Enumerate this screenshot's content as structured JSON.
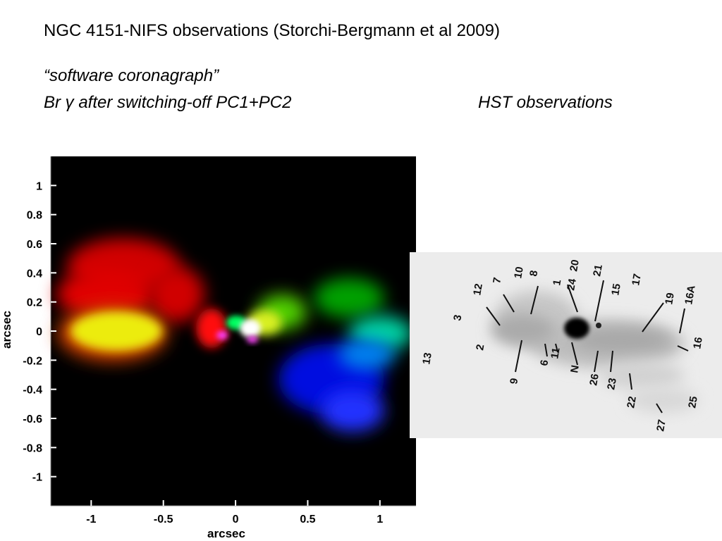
{
  "header": {
    "title": "NGC 4151-NIFS observations (Storchi-Bergmann et al 2009)",
    "subtitle_quote": "“software coronagraph”",
    "subtitle_left": "Br γ after switching-off PC1+PC2",
    "subtitle_right": "HST observations"
  },
  "nifs_plot": {
    "xlabel": "arcsec",
    "ylabel": "arcsec",
    "x_ticks": [
      "-1",
      "-0.5",
      "0",
      "0.5",
      "1"
    ],
    "y_ticks": [
      "1",
      "0.8",
      "0.6",
      "0.4",
      "0.2",
      "0",
      "-0.2",
      "-0.4",
      "-0.6",
      "-0.8",
      "-1"
    ]
  },
  "hst_labels": [
    "13",
    "3",
    "12",
    "2",
    "7",
    "10",
    "8",
    "9",
    "1",
    "6",
    "11",
    "24",
    "N",
    "20",
    "21",
    "26",
    "15",
    "23",
    "17",
    "22",
    "19",
    "16A",
    "16",
    "25",
    "27"
  ]
}
